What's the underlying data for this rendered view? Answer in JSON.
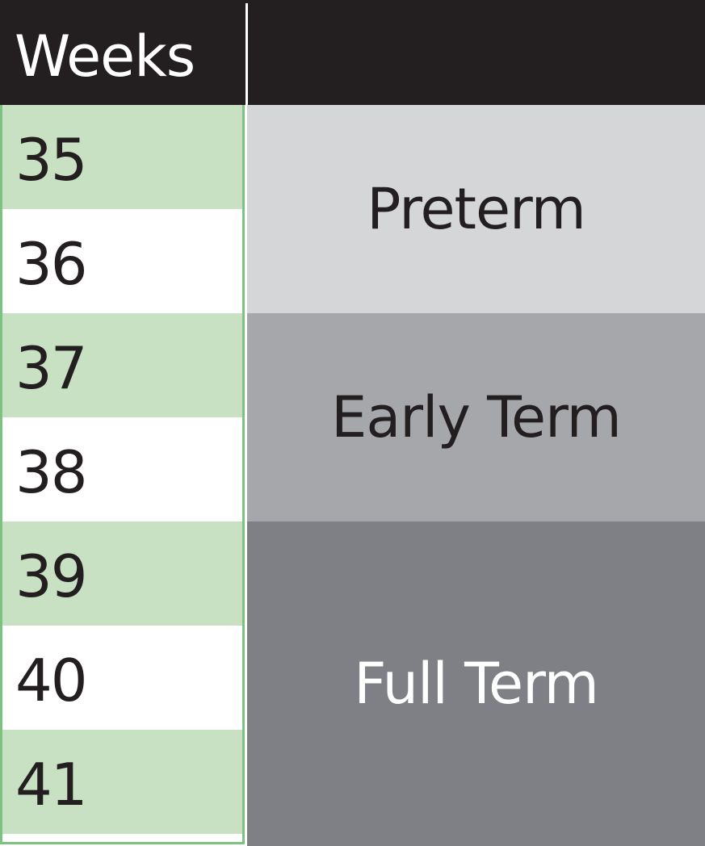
{
  "chart_data": {
    "type": "table",
    "header": {
      "weeks_label": "Weeks",
      "category_label": ""
    },
    "weeks": [
      "35",
      "36",
      "37",
      "38",
      "39",
      "40",
      "41"
    ],
    "row_colors": [
      "#c8e1c3",
      "#ffffff"
    ],
    "categories": [
      {
        "label": "Preterm",
        "weeks": [
          "35",
          "36"
        ],
        "color": "#d5d6d8",
        "text_color": "#231f20"
      },
      {
        "label": "Early Term",
        "weeks": [
          "37",
          "38"
        ],
        "color": "#a6a7ab",
        "text_color": "#231f20"
      },
      {
        "label": "Full Term",
        "weeks": [
          "39",
          "40",
          "41"
        ],
        "color": "#7e8085",
        "text_color": "#ffffff"
      }
    ]
  }
}
